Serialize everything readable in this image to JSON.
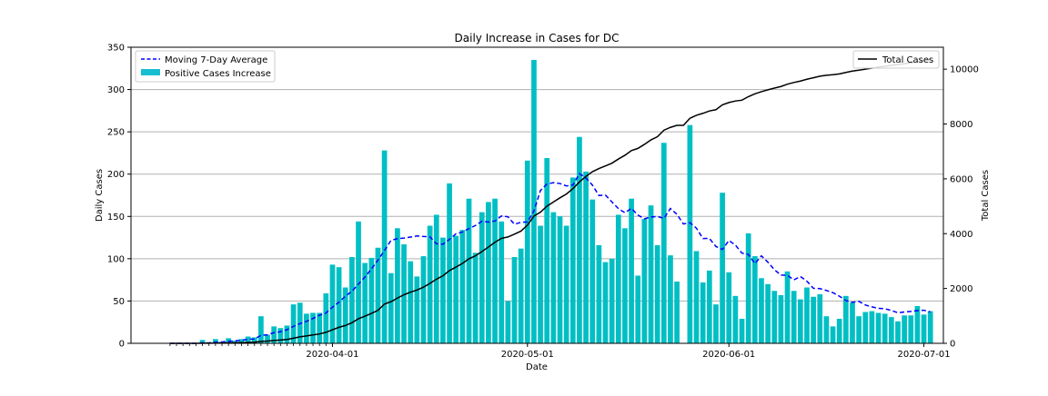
{
  "chart_data": {
    "type": "bar",
    "title": "Daily Increase in Cases for DC",
    "xlabel": "Date",
    "ylabel": "Daily Cases",
    "ylabel_right": "Total Cases",
    "ylim": [
      0,
      350
    ],
    "ylim_right": [
      0,
      10800
    ],
    "xlim": [
      "2020-03-01",
      "2020-07-04"
    ],
    "grid": "horizontal",
    "x_ticks": [
      "2020-04-01",
      "2020-05-01",
      "2020-06-01",
      "2020-07-01"
    ],
    "y_ticks": [
      0,
      50,
      100,
      150,
      200,
      250,
      300,
      350
    ],
    "y_ticks_right": [
      0,
      2000,
      4000,
      6000,
      8000,
      10000
    ],
    "legend_left": {
      "placement": "top-left"
    },
    "legend_right": {
      "placement": "top-right"
    },
    "colors": {
      "bars": "#17becf",
      "bar_fill": "#00bfc4",
      "average": "#0000ff",
      "total": "#000000",
      "grid": "#b0b0b0"
    },
    "series": [
      {
        "name": "Positive Cases Increase",
        "kind": "bar",
        "axis": "left",
        "start_date": "2020-03-07",
        "values": [
          0,
          0,
          0,
          0,
          0,
          4,
          0,
          5,
          2,
          6,
          3,
          5,
          8,
          7,
          32,
          10,
          20,
          18,
          21,
          46,
          48,
          35,
          36,
          36,
          59,
          93,
          90,
          66,
          102,
          144,
          95,
          101,
          113,
          228,
          83,
          136,
          117,
          97,
          79,
          103,
          139,
          152,
          125,
          189,
          127,
          134,
          171,
          107,
          155,
          167,
          171,
          144,
          50,
          102,
          112,
          216,
          335,
          139,
          219,
          155,
          150,
          139,
          196,
          244,
          203,
          170,
          116,
          96,
          100,
          152,
          136,
          171,
          80,
          147,
          163,
          116,
          237,
          104,
          73,
          0,
          258,
          109,
          72,
          86,
          46,
          178,
          84,
          56,
          29,
          130,
          103,
          77,
          70,
          62,
          57,
          85,
          62,
          52,
          66,
          55,
          58,
          32,
          20,
          29,
          56,
          48,
          32,
          37,
          38,
          36,
          35,
          31,
          26,
          33,
          33,
          44,
          34,
          38
        ]
      },
      {
        "name": "Moving 7-Day Average",
        "kind": "line",
        "axis": "left",
        "start_date": "2020-03-07",
        "values": [
          0,
          0,
          0,
          0,
          0,
          0.5,
          0.6,
          1.3,
          1.6,
          2.4,
          2.9,
          3.6,
          4.7,
          5.1,
          9.4,
          10.1,
          12.6,
          13.7,
          16.1,
          20.1,
          23.3,
          26,
          29.3,
          33.3,
          35.8,
          42.7,
          48.7,
          55.7,
          61.6,
          70,
          78.4,
          88,
          98.3,
          109.7,
          121.6,
          123.7,
          124.4,
          125.6,
          126.9,
          126.3,
          125.9,
          117.7,
          117.2,
          122.8,
          129.4,
          131.6,
          135.6,
          139.3,
          144.3,
          143.3,
          144.6,
          150.6,
          149.6,
          140.7,
          143.1,
          143.4,
          156.4,
          180.6,
          188.3,
          189.9,
          188.9,
          186,
          187.1,
          200.5,
          195.4,
          187,
          174.7,
          175.3,
          167.1,
          159.2,
          154.4,
          159.5,
          151.6,
          147.2,
          149.4,
          149.9,
          147.7,
          159.4,
          152.5,
          141.1,
          142.6,
          136.1,
          123.9,
          124,
          114.5,
          110.9,
          121.6,
          116.1,
          106.6,
          105.2,
          94.2,
          103.4,
          95.9,
          87.1,
          80.6,
          80.4,
          75,
          79,
          73.4,
          65.1,
          64.7,
          62.5,
          59.9,
          55.7,
          50.6,
          48.4,
          49.6,
          45.3,
          43.1,
          41.4,
          40.9,
          38.8,
          36.1,
          37,
          37.7,
          38.7,
          39.1,
          37
        ]
      },
      {
        "name": "Total Cases",
        "kind": "line",
        "axis": "right",
        "start_date": "2020-03-07",
        "values": [
          0,
          0,
          0,
          0,
          0,
          4,
          4,
          9,
          11,
          17,
          20,
          25,
          33,
          40,
          72,
          82,
          102,
          120,
          141,
          187,
          235,
          270,
          306,
          342,
          401,
          494,
          584,
          650,
          752,
          896,
          991,
          1092,
          1205,
          1433,
          1516,
          1652,
          1769,
          1866,
          1945,
          2048,
          2187,
          2339,
          2464,
          2653,
          2780,
          2914,
          3085,
          3192,
          3347,
          3514,
          3685,
          3829,
          3879,
          3981,
          4093,
          4309,
          4644,
          4783,
          5002,
          5157,
          5307,
          5446,
          5642,
          5886,
          6089,
          6259,
          6375,
          6471,
          6571,
          6723,
          6859,
          7030,
          7110,
          7257,
          7420,
          7536,
          7773,
          7877,
          7950,
          7950,
          8208,
          8317,
          8389,
          8475,
          8521,
          8699,
          8783,
          8839,
          8868,
          8998,
          9101,
          9178,
          9248,
          9310,
          9367,
          9452,
          9514,
          9566,
          9632,
          9687,
          9745,
          9777,
          9797,
          9826,
          9882,
          9930,
          9962,
          9999,
          10037,
          10073,
          10108,
          10139,
          10165,
          10198,
          10231,
          10275,
          10309,
          10347
        ]
      }
    ]
  }
}
